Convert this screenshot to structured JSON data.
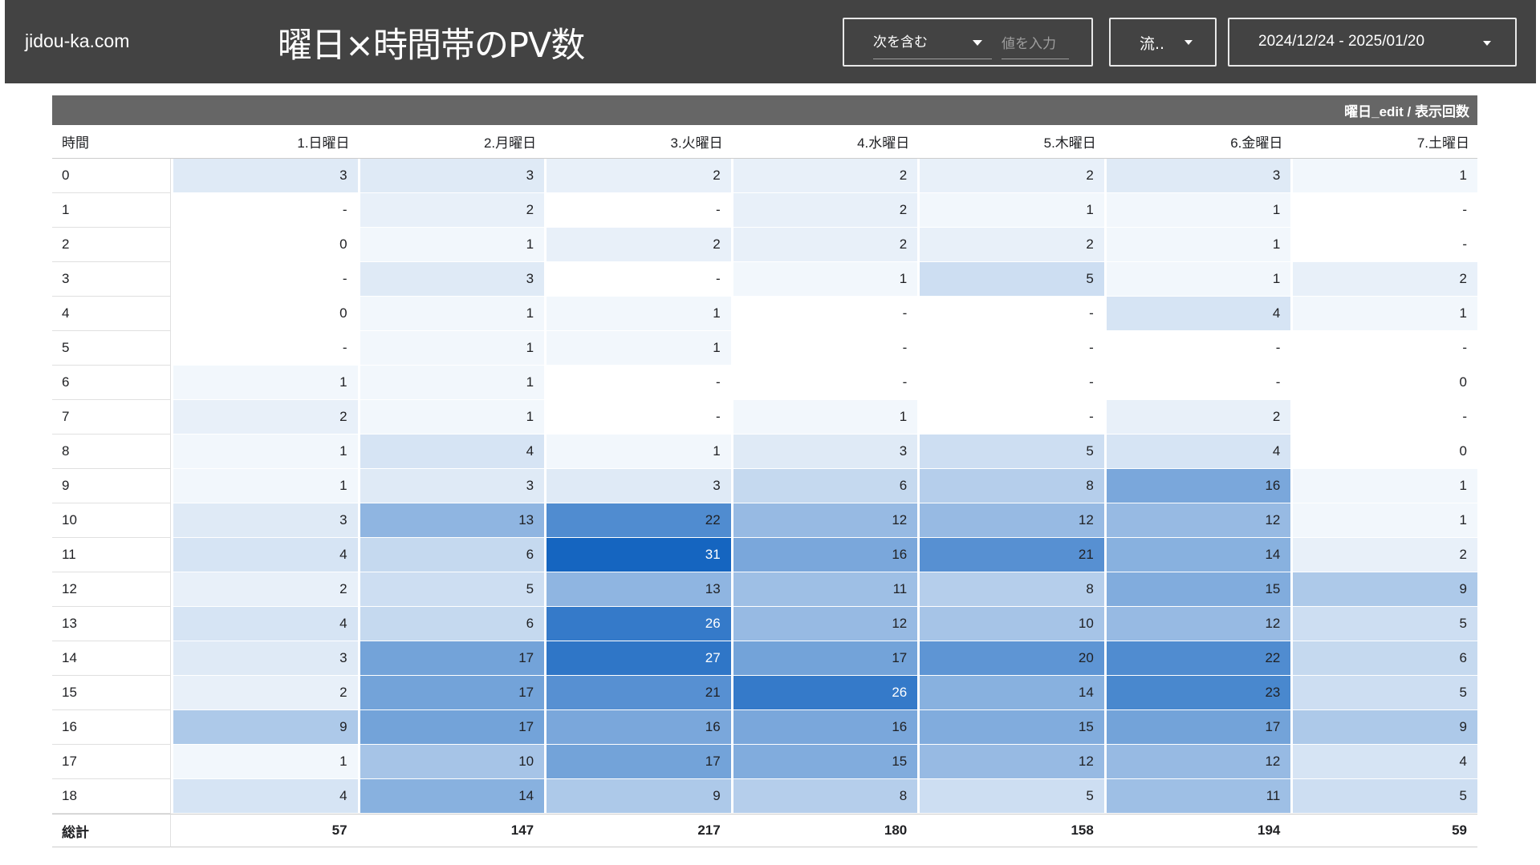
{
  "header": {
    "site_name": "jidou-ka.com",
    "title": "曜日×時間帯のPV数",
    "filter": {
      "operator": "次を含む",
      "input_placeholder": "値を入力",
      "input_value": ""
    },
    "source_dropdown": "流..",
    "date_range": "2024/12/24 - 2025/01/20"
  },
  "table": {
    "band_label": "曜日_edit / 表示回数",
    "hour_header": "時間",
    "days": [
      "1.日曜日",
      "2.月曜日",
      "3.火曜日",
      "4.水曜日",
      "5.木曜日",
      "6.金曜日",
      "7.土曜日"
    ],
    "max_value": 31,
    "heat_color_low": "#ffffff",
    "heat_color_high": "#1565c0",
    "rows": [
      {
        "hour": "0",
        "values": [
          "3",
          "3",
          "2",
          "2",
          "2",
          "3",
          "1"
        ]
      },
      {
        "hour": "1",
        "values": [
          "-",
          "2",
          "-",
          "2",
          "1",
          "1",
          "-"
        ]
      },
      {
        "hour": "2",
        "values": [
          "0",
          "1",
          "2",
          "2",
          "2",
          "1",
          "-"
        ]
      },
      {
        "hour": "3",
        "values": [
          "-",
          "3",
          "-",
          "1",
          "5",
          "1",
          "2"
        ]
      },
      {
        "hour": "4",
        "values": [
          "0",
          "1",
          "1",
          "-",
          "-",
          "4",
          "1"
        ]
      },
      {
        "hour": "5",
        "values": [
          "-",
          "1",
          "1",
          "-",
          "-",
          "-",
          "-"
        ]
      },
      {
        "hour": "6",
        "values": [
          "1",
          "1",
          "-",
          "-",
          "-",
          "-",
          "0"
        ]
      },
      {
        "hour": "7",
        "values": [
          "2",
          "1",
          "-",
          "1",
          "-",
          "2",
          "-"
        ]
      },
      {
        "hour": "8",
        "values": [
          "1",
          "4",
          "1",
          "3",
          "5",
          "4",
          "0"
        ]
      },
      {
        "hour": "9",
        "values": [
          "1",
          "3",
          "3",
          "6",
          "8",
          "16",
          "1"
        ]
      },
      {
        "hour": "10",
        "values": [
          "3",
          "13",
          "22",
          "12",
          "12",
          "12",
          "1"
        ]
      },
      {
        "hour": "11",
        "values": [
          "4",
          "6",
          "31",
          "16",
          "21",
          "14",
          "2"
        ]
      },
      {
        "hour": "12",
        "values": [
          "2",
          "5",
          "13",
          "11",
          "8",
          "15",
          "9"
        ]
      },
      {
        "hour": "13",
        "values": [
          "4",
          "6",
          "26",
          "12",
          "10",
          "12",
          "5"
        ]
      },
      {
        "hour": "14",
        "values": [
          "3",
          "17",
          "27",
          "17",
          "20",
          "22",
          "6"
        ]
      },
      {
        "hour": "15",
        "values": [
          "2",
          "17",
          "21",
          "26",
          "14",
          "23",
          "5"
        ]
      },
      {
        "hour": "16",
        "values": [
          "9",
          "17",
          "16",
          "16",
          "15",
          "17",
          "9"
        ]
      },
      {
        "hour": "17",
        "values": [
          "1",
          "10",
          "17",
          "15",
          "12",
          "12",
          "4"
        ]
      },
      {
        "hour": "18",
        "values": [
          "4",
          "14",
          "9",
          "8",
          "5",
          "11",
          "5"
        ]
      }
    ],
    "total_label": "総計",
    "totals": [
      "57",
      "147",
      "217",
      "180",
      "158",
      "194",
      "59"
    ]
  }
}
